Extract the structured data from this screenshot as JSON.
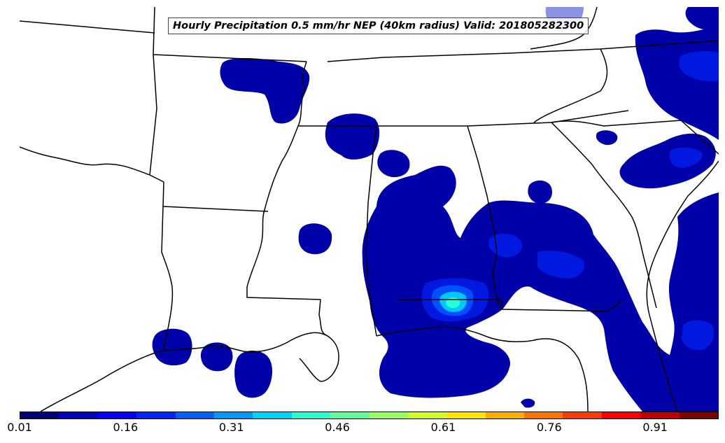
{
  "map": {
    "title": "Hourly Precipitation 0.5 mm/hr NEP (40km radius) Valid: 201805282300",
    "region": "Southeastern United States",
    "field_colors": {
      "low": "#0000a8",
      "mid": "#0018e0",
      "higher": "#0050ff",
      "cyan": "#00c8ff",
      "peak": "#22ffd6"
    },
    "line_color": "#000000"
  },
  "colorbar": {
    "colors": [
      "#00007f",
      "#0000bd",
      "#0000fa",
      "#0026ff",
      "#0060ff",
      "#0098ff",
      "#00d4ff",
      "#29ffce",
      "#60ff97",
      "#97ff60",
      "#ceff29",
      "#ffe600",
      "#ffad00",
      "#ff7400",
      "#ff3c00",
      "#fa0000",
      "#bd0000",
      "#7f0000"
    ],
    "range": [
      0.01,
      1.0
    ],
    "ticks": [
      "0.01",
      "0.16",
      "0.31",
      "0.46",
      "0.61",
      "0.76",
      "0.91"
    ],
    "tick_values": [
      0.01,
      0.16,
      0.31,
      0.46,
      0.61,
      0.76,
      0.91
    ]
  }
}
